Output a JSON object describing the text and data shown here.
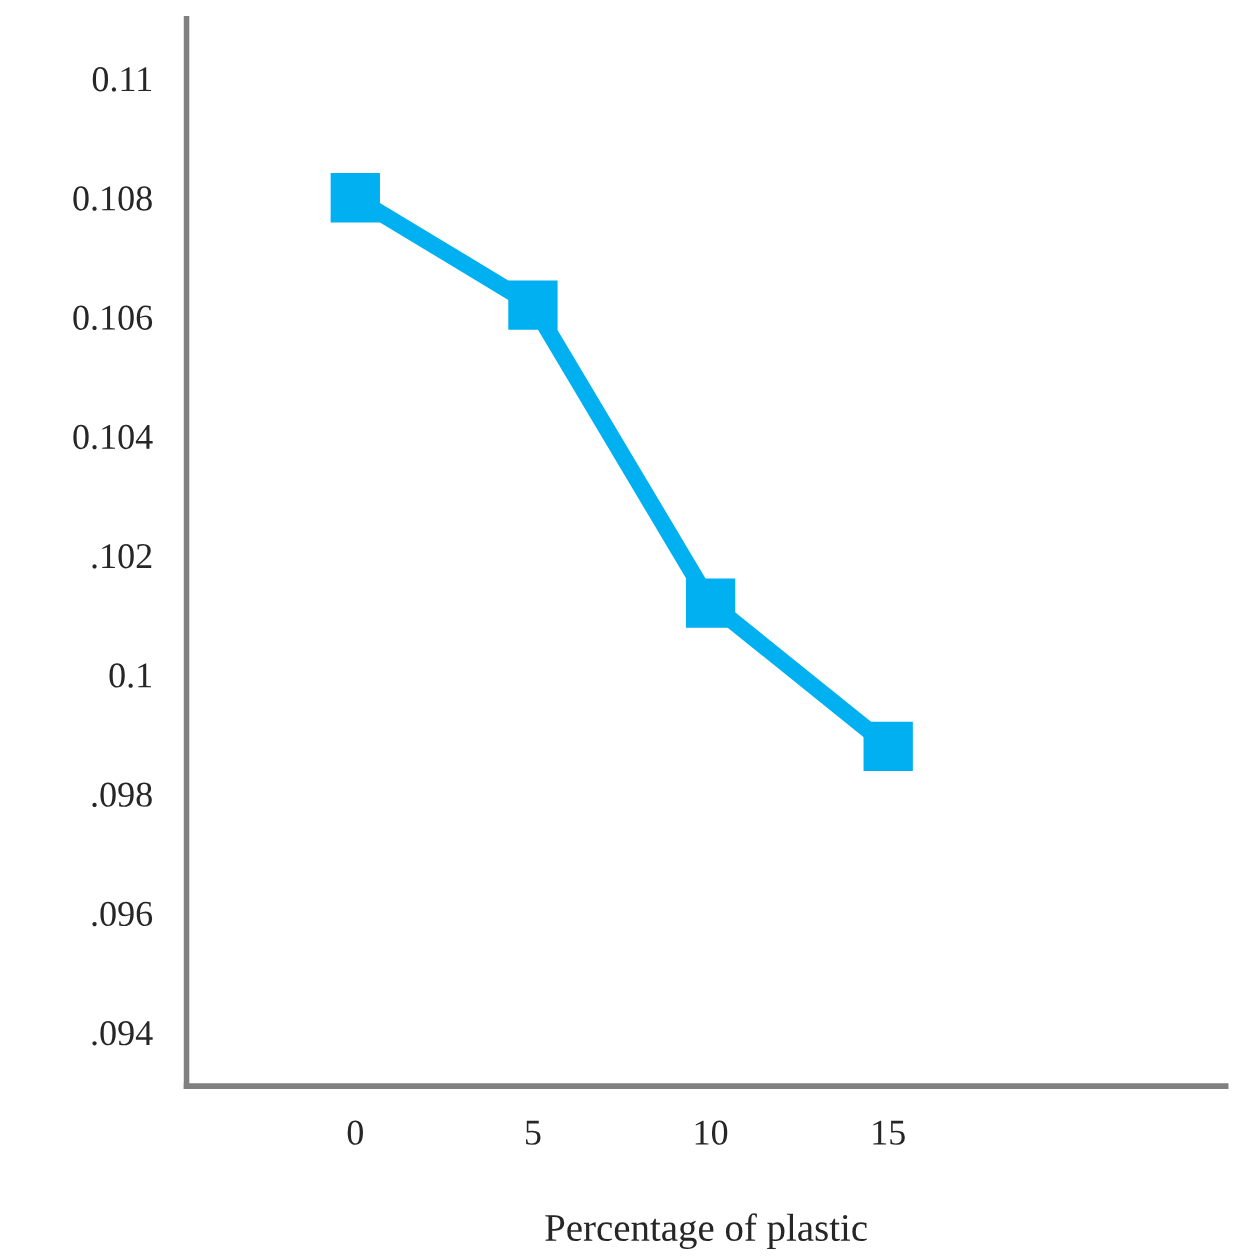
{
  "chart_data": {
    "type": "line",
    "xlabel": "Percentage of plastic",
    "categories": [
      "0",
      "5",
      "10",
      "15"
    ],
    "series": [
      {
        "color": "#00b0f0",
        "values": [
          0.108,
          0.1062,
          0.1012,
          0.0988
        ]
      }
    ],
    "ylim": [
      0.0931,
      0.111
    ],
    "yticks": [
      {
        "value": 0.094,
        "label": ".094"
      },
      {
        "value": 0.096,
        "label": ".096"
      },
      {
        "value": 0.098,
        "label": ".098"
      },
      {
        "value": 0.1,
        "label": "0.1"
      },
      {
        "value": 0.102,
        "label": ".102"
      },
      0.104,
      0.106,
      0.108,
      0.11
    ],
    "marker": "square",
    "line_style": "solid"
  }
}
